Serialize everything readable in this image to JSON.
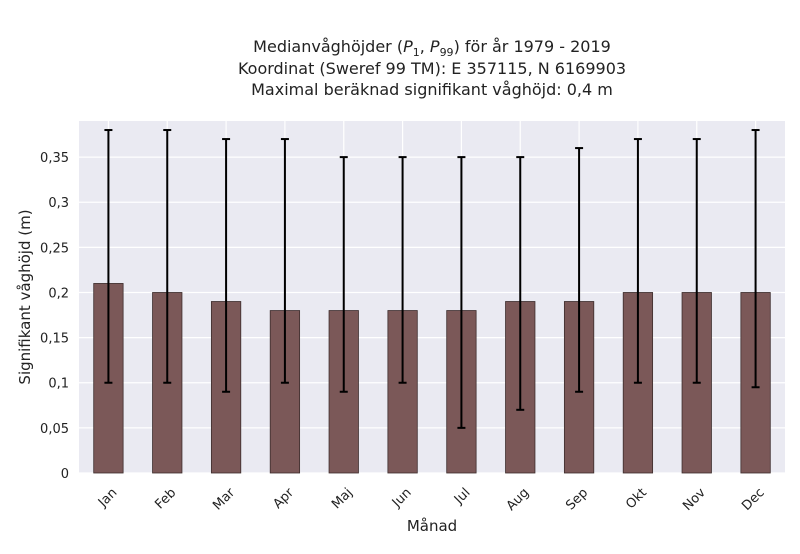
{
  "chart_data": {
    "type": "bar",
    "title_lines": [
      "Medianvåghöjder (P1, P99) för år 1979 - 2019",
      "Koordinat (Sweref 99 TM): E 357115, N 6169903",
      "Maximal beräknad signifikant våghöjd: 0,4 m"
    ],
    "title_parts": {
      "prefix": "Medianvåghöjder (",
      "p": "P",
      "sub1": "1",
      "comma": ", ",
      "sub99": "99",
      "suffix": ") för år 1979 - 2019"
    },
    "xlabel": "Månad",
    "ylabel": "Signifikant våghöjd (m)",
    "categories": [
      "Jan",
      "Feb",
      "Mar",
      "Apr",
      "Maj",
      "Jun",
      "Jul",
      "Aug",
      "Sep",
      "Okt",
      "Nov",
      "Dec"
    ],
    "values": [
      0.21,
      0.2,
      0.19,
      0.18,
      0.18,
      0.18,
      0.18,
      0.19,
      0.19,
      0.2,
      0.2,
      0.2
    ],
    "error_low": [
      0.1,
      0.1,
      0.09,
      0.1,
      0.09,
      0.1,
      0.05,
      0.07,
      0.09,
      0.1,
      0.1,
      0.095
    ],
    "error_high": [
      0.38,
      0.38,
      0.37,
      0.37,
      0.35,
      0.35,
      0.35,
      0.35,
      0.36,
      0.37,
      0.37,
      0.38
    ],
    "ylim": [
      0,
      0.39
    ],
    "yticks": [
      0,
      0.05,
      0.1,
      0.15,
      0.2,
      0.25,
      0.3,
      0.35
    ],
    "ytick_labels": [
      "0",
      "0,05",
      "0,1",
      "0,15",
      "0,2",
      "0,25",
      "0,3",
      "0,35"
    ],
    "grid": true,
    "colors": {
      "bar": "#7b5858",
      "bar_edge": "#3c2c2c",
      "plot_bg": "#eaeaf2",
      "grid": "#ffffff",
      "error": "#000000"
    }
  }
}
